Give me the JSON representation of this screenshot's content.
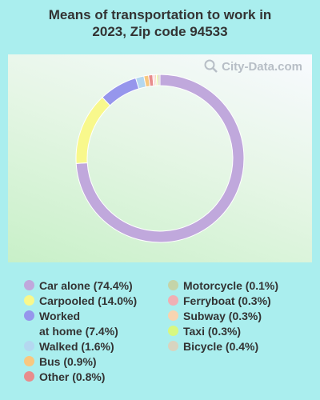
{
  "title_line1": "Means of transportation to work in",
  "title_line2": "2023, Zip code 94533",
  "watermark": "City-Data.com",
  "colors": {
    "background": "#aaeeee"
  },
  "chart_data": {
    "type": "pie",
    "subtype": "donut",
    "title": "Means of transportation to work in 2023, Zip code 94533",
    "slices": [
      {
        "label": "Car alone",
        "value": 74.4,
        "color": "#c0a8dc"
      },
      {
        "label": "Carpooled",
        "value": 14.0,
        "color": "#f8f88c"
      },
      {
        "label": "Worked at home",
        "value": 7.4,
        "color": "#9696ec"
      },
      {
        "label": "Walked",
        "value": 1.6,
        "color": "#b4d8f0"
      },
      {
        "label": "Bus",
        "value": 0.9,
        "color": "#f8c880"
      },
      {
        "label": "Other",
        "value": 0.8,
        "color": "#e88c8c"
      },
      {
        "label": "Motorcycle",
        "value": 0.1,
        "color": "#c4d4a8"
      },
      {
        "label": "Ferryboat",
        "value": 0.3,
        "color": "#f0b0b4"
      },
      {
        "label": "Subway",
        "value": 0.3,
        "color": "#f8d4b0"
      },
      {
        "label": "Taxi",
        "value": 0.3,
        "color": "#d8f880"
      },
      {
        "label": "Bicycle",
        "value": 0.4,
        "color": "#d8d4c0"
      }
    ]
  },
  "legend": {
    "left": [
      {
        "text": "Car alone (74.4%)",
        "color": "#c0a8dc"
      },
      {
        "text": "Carpooled (14.0%)",
        "color": "#f8f88c"
      },
      {
        "text": "Worked\nat home (7.4%)",
        "color": "#9696ec"
      },
      {
        "text": "Walked (1.6%)",
        "color": "#b4d8f0"
      },
      {
        "text": "Bus (0.9%)",
        "color": "#f8c880"
      },
      {
        "text": "Other (0.8%)",
        "color": "#e88c8c"
      }
    ],
    "right": [
      {
        "text": "Motorcycle (0.1%)",
        "color": "#c4d4a8"
      },
      {
        "text": "Ferryboat (0.3%)",
        "color": "#f0b0b4"
      },
      {
        "text": "Subway (0.3%)",
        "color": "#f8d4b0"
      },
      {
        "text": "Taxi (0.3%)",
        "color": "#d8f880"
      },
      {
        "text": "Bicycle (0.4%)",
        "color": "#d8d4c0"
      }
    ]
  }
}
